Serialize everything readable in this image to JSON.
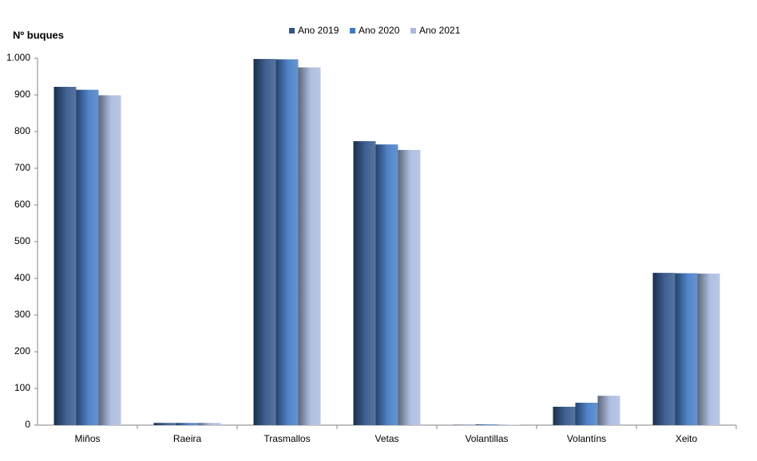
{
  "chart_data": {
    "type": "bar",
    "y_label": "Nº  buques",
    "categories": [
      "Miños",
      "Raeira",
      "Trasmallos",
      "Vetas",
      "Volantillas",
      "Volantíns",
      "Xeito"
    ],
    "series": [
      {
        "name": "Ano 2019",
        "color": "#2f5388",
        "values": [
          922,
          6,
          998,
          774,
          1,
          50,
          415
        ]
      },
      {
        "name": "Ano 2020",
        "color": "#4279c4",
        "values": [
          914,
          6,
          997,
          765,
          2,
          61,
          414
        ]
      },
      {
        "name": "Ano 2021",
        "color": "#a9b9de",
        "values": [
          899,
          6,
          975,
          750,
          1,
          80,
          413
        ]
      }
    ],
    "ylim": [
      0,
      1000
    ],
    "yticks": [
      0,
      100,
      200,
      300,
      400,
      500,
      600,
      700,
      800,
      900,
      {
        "value": 1000,
        "label": "1.000"
      }
    ],
    "grid": false
  }
}
